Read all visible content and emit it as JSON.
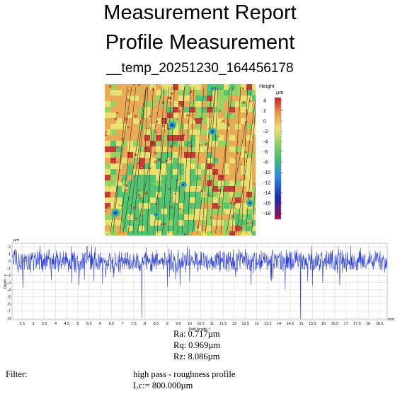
{
  "report": {
    "title": "Measurement Report",
    "subtitle": "Profile Measurement",
    "filename": "__temp_20251230_164456178"
  },
  "heatmap": {
    "colorbar_title": "Height",
    "colorbar_unit": "µm",
    "colorbar_ticks": [
      "4",
      "2",
      "0",
      "-2",
      "-4",
      "-6",
      "-8",
      "-10",
      "-12",
      "-14",
      "-16",
      "-18"
    ],
    "colors": [
      "#c81e28",
      "#f0a050",
      "#f0e070",
      "#8ed060",
      "#40c070",
      "#2a8ee0",
      "#1c2cb0",
      "#a01050"
    ]
  },
  "chart_data": {
    "type": "line",
    "xlabel": "Path length - l",
    "ylabel": "Depth - z",
    "x_unit": "mm",
    "y_unit": "µm",
    "xlim": [
      2.05,
      18.85
    ],
    "ylim": [
      -8.2,
      2.5
    ],
    "x_ticks": [
      "2.5",
      "3",
      "3.5",
      "4",
      "4.5",
      "5",
      "5.5",
      "6",
      "6.5",
      "7",
      "7.5",
      "8",
      "8.5",
      "9",
      "9.5",
      "10",
      "10.5",
      "11",
      "11.5",
      "12",
      "12.5",
      "13",
      "13.5",
      "14",
      "14.5",
      "15",
      "15.5",
      "16",
      "16.5",
      "17",
      "17.5",
      "18",
      "18.5"
    ],
    "y_ticks": [
      "2",
      "1",
      "0",
      "-1",
      "-2",
      "-3",
      "-4",
      "-5",
      "-6",
      "-7",
      "-8"
    ],
    "series_color": "#2c3fd8",
    "grid": true
  },
  "stats": {
    "ra": "Ra: 0.717µm",
    "rq": "Rq: 0.969µm",
    "rz": "Rz: 8.086µm"
  },
  "filter": {
    "label": "Filter:",
    "value": "high pass - roughness profile",
    "lc": "Lc:= 800.000µm"
  }
}
